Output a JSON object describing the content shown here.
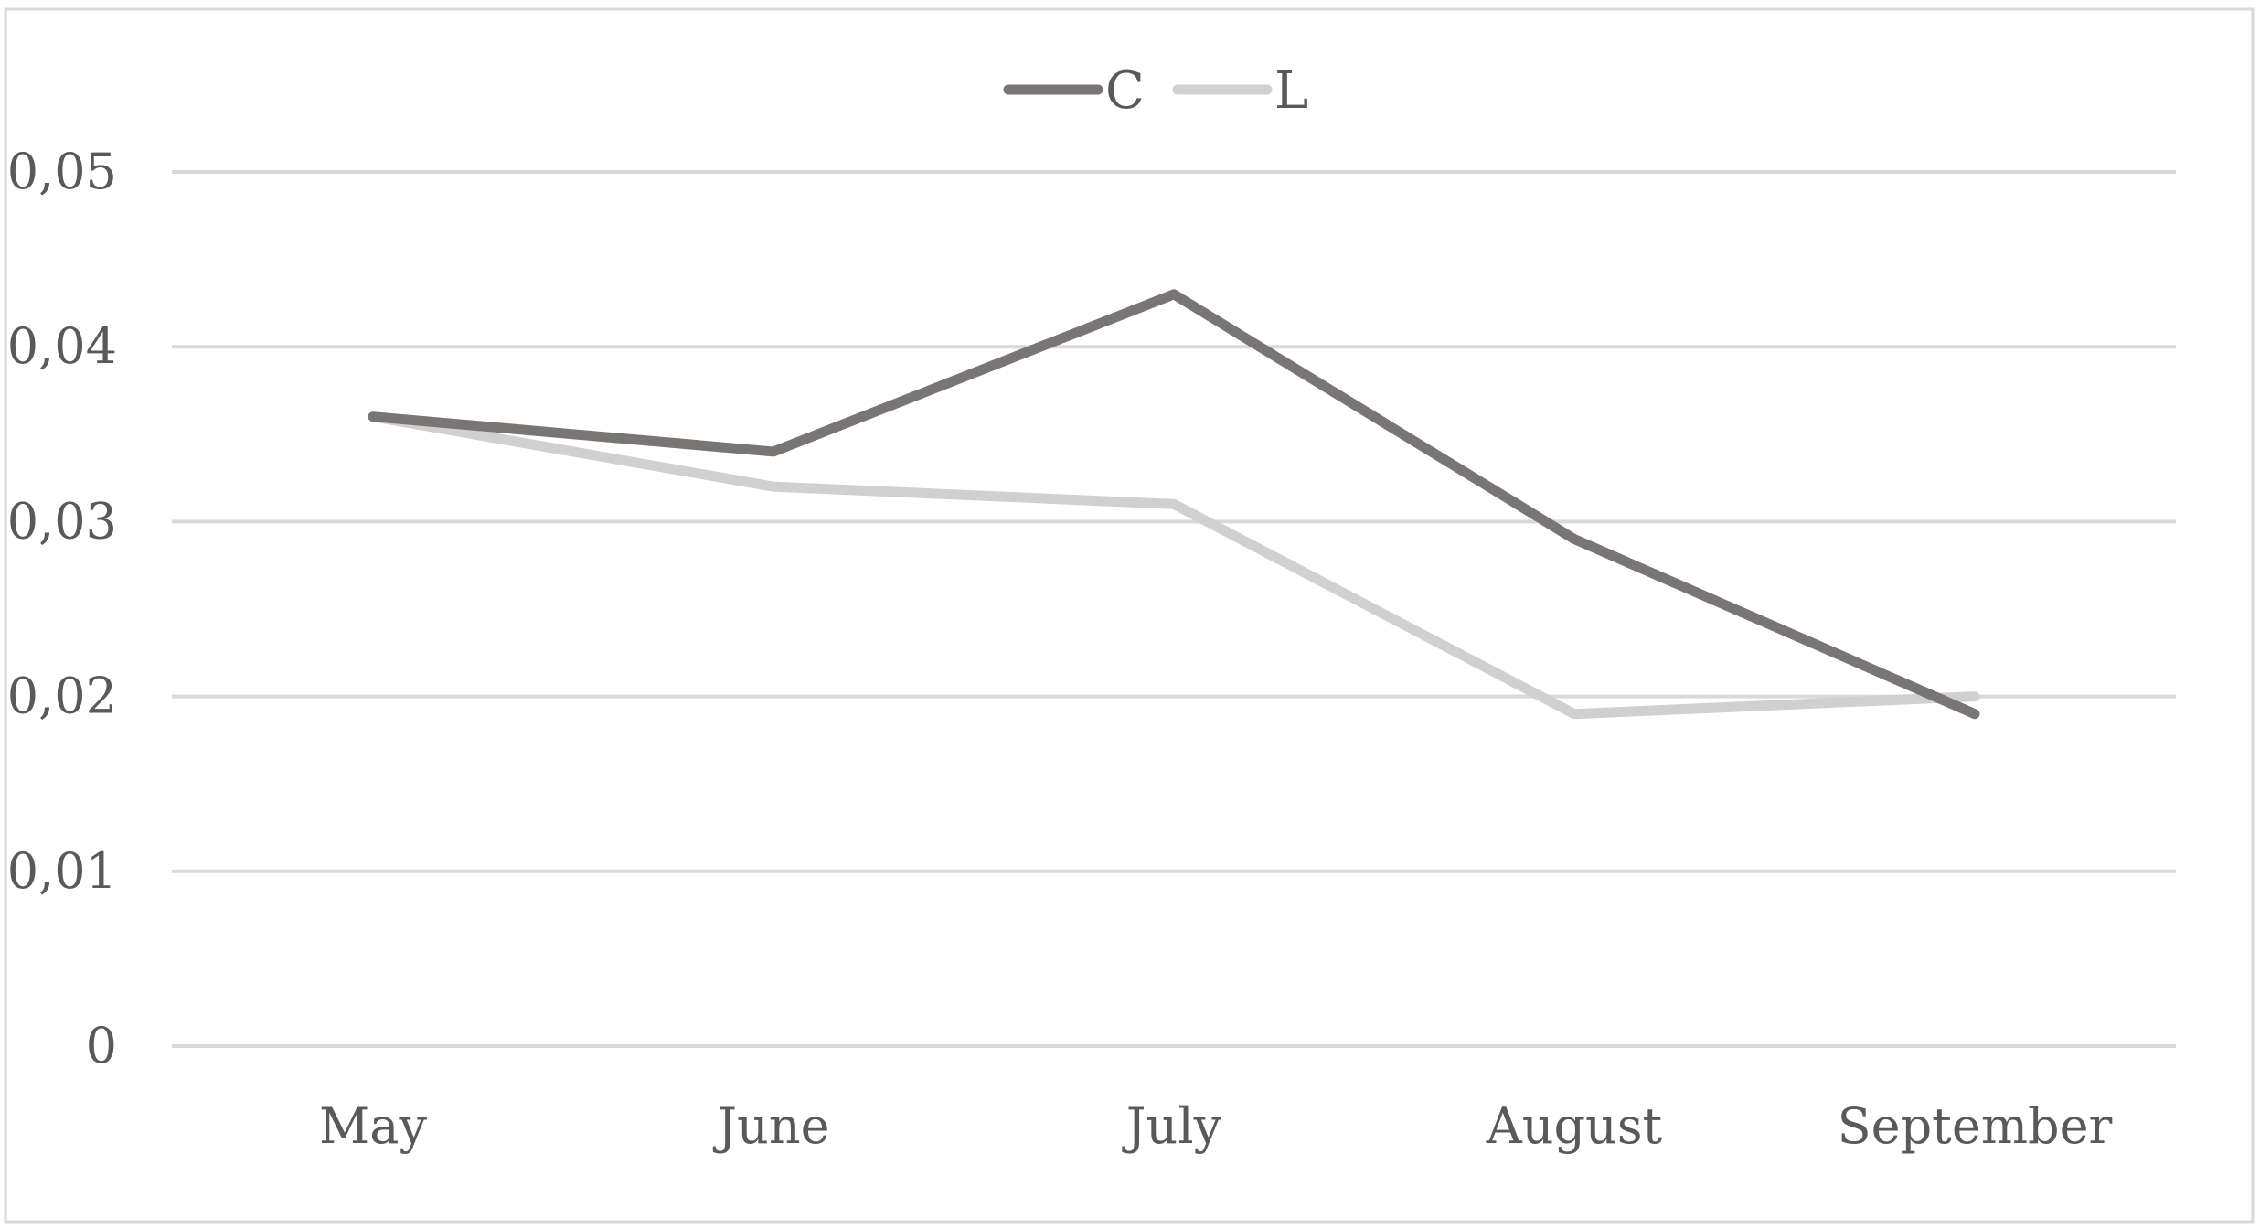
{
  "chart_data": {
    "type": "line",
    "title": "",
    "xlabel": "",
    "ylabel": "",
    "categories": [
      "May",
      "June",
      "July",
      "August",
      "September"
    ],
    "series": [
      {
        "name": "C",
        "color": "#7a7575",
        "values": [
          0.036,
          0.034,
          0.043,
          0.029,
          0.019
        ]
      },
      {
        "name": "L",
        "color": "#d0d0d0",
        "values": [
          0.036,
          0.032,
          0.031,
          0.019,
          0.02
        ]
      }
    ],
    "ylim": [
      0,
      0.05
    ],
    "yticks": [
      0,
      0.01,
      0.02,
      0.03,
      0.04,
      0.05
    ],
    "ytick_labels": [
      "0",
      "0,01",
      "0,02",
      "0,03",
      "0,04",
      "0,05"
    ],
    "grid": true,
    "legend_position": "top-center",
    "colors": {
      "gridline": "#d9d9d9",
      "frame": "#d9d9d9",
      "tick_text": "#595959"
    }
  }
}
